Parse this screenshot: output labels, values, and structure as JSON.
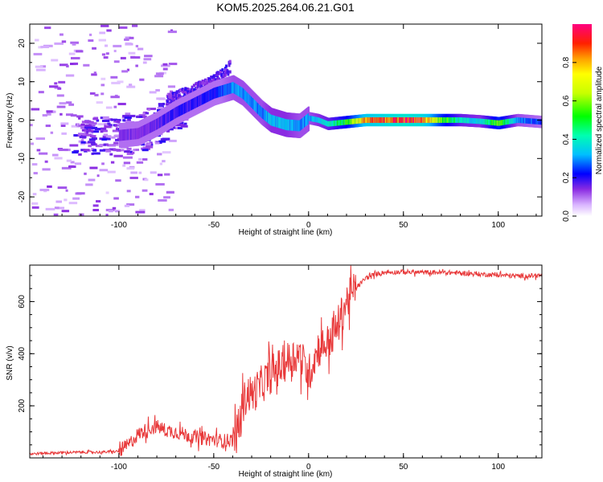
{
  "title": "KOM5.2025.264.06.21.G01",
  "chart_data": [
    {
      "type": "heatmap",
      "xlabel": "Height of straight line (km)",
      "ylabel": "Frequency (Hz)",
      "xlim": [
        -147,
        123
      ],
      "ylim": [
        -25,
        25
      ],
      "xticks": [
        -100,
        -50,
        0,
        50,
        100
      ],
      "xtick_labels": [
        "-100",
        "-50",
        "0",
        "50",
        "100"
      ],
      "yticks": [
        -20,
        -10,
        0,
        10,
        20
      ],
      "ytick_labels": [
        "-20",
        "-10",
        "0",
        "10",
        "20"
      ],
      "colorbar": {
        "label": "Normalized spectral amplitude",
        "range": [
          0,
          1
        ],
        "ticks": [
          0,
          0.2,
          0.4,
          0.6,
          0.8
        ],
        "tick_labels": [
          "0.0",
          "0.2",
          "0.4",
          "0.6",
          "0.8"
        ]
      },
      "ridge": {
        "description": "dominant frequency track",
        "points": [
          {
            "x": -100,
            "y": -4,
            "amp": 0.15
          },
          {
            "x": -90,
            "y": -3.5,
            "amp": 0.15
          },
          {
            "x": -80,
            "y": -1,
            "amp": 0.17
          },
          {
            "x": -70,
            "y": 2,
            "amp": 0.2
          },
          {
            "x": -60,
            "y": 4.5,
            "amp": 0.2
          },
          {
            "x": -50,
            "y": 7,
            "amp": 0.22
          },
          {
            "x": -40,
            "y": 8.5,
            "amp": 0.3
          },
          {
            "x": -35,
            "y": 7,
            "amp": 0.3
          },
          {
            "x": -30,
            "y": 4.5,
            "amp": 0.3
          },
          {
            "x": -25,
            "y": 2,
            "amp": 0.3
          },
          {
            "x": -20,
            "y": 0,
            "amp": 0.35
          },
          {
            "x": -12,
            "y": -1.2,
            "amp": 0.35
          },
          {
            "x": -5,
            "y": -1.5,
            "amp": 0.3
          },
          {
            "x": 0,
            "y": 0.5,
            "amp": 0.3
          },
          {
            "x": 5,
            "y": 0,
            "amp": 0.35
          },
          {
            "x": 10,
            "y": -1,
            "amp": 0.4
          },
          {
            "x": 20,
            "y": -0.5,
            "amp": 0.55
          },
          {
            "x": 30,
            "y": 0,
            "amp": 0.85
          },
          {
            "x": 50,
            "y": 0,
            "amp": 0.95
          },
          {
            "x": 60,
            "y": 0,
            "amp": 0.9
          },
          {
            "x": 70,
            "y": 0,
            "amp": 0.6
          },
          {
            "x": 80,
            "y": 0,
            "amp": 0.4
          },
          {
            "x": 90,
            "y": -0.3,
            "amp": 0.35
          },
          {
            "x": 100,
            "y": -0.8,
            "amp": 0.6
          },
          {
            "x": 110,
            "y": 0,
            "amp": 0.3
          },
          {
            "x": 123,
            "y": -0.5,
            "amp": 0.25
          }
        ]
      },
      "upper_branch": {
        "description": "secondary upper frequency branch",
        "points": [
          {
            "x": -75,
            "y": 5
          },
          {
            "x": -65,
            "y": 7
          },
          {
            "x": -55,
            "y": 9
          },
          {
            "x": -45,
            "y": 12
          },
          {
            "x": -42,
            "y": 14
          }
        ]
      }
    },
    {
      "type": "line",
      "xlabel": "Height of straight line (km)",
      "ylabel": "SNR (v/v)",
      "xlim": [
        -147,
        123
      ],
      "ylim": [
        0,
        740
      ],
      "xticks": [
        -100,
        -50,
        0,
        50,
        100
      ],
      "xtick_labels": [
        "-100",
        "-50",
        "0",
        "50",
        "100"
      ],
      "yticks": [
        200,
        400,
        600
      ],
      "ytick_labels": [
        "200",
        "400",
        "600"
      ],
      "color": "#e8393a",
      "series": [
        {
          "name": "SNR",
          "x": [
            -147,
            -140,
            -130,
            -120,
            -110,
            -100,
            -95,
            -90,
            -85,
            -80,
            -75,
            -70,
            -65,
            -60,
            -55,
            -50,
            -45,
            -40,
            -37,
            -35,
            -32,
            -30,
            -25,
            -20,
            -15,
            -10,
            -5,
            0,
            5,
            10,
            15,
            20,
            25,
            30,
            35,
            40,
            50,
            60,
            70,
            80,
            90,
            100,
            110,
            123
          ],
          "y": [
            15,
            18,
            20,
            22,
            22,
            25,
            50,
            90,
            110,
            120,
            105,
            100,
            90,
            80,
            75,
            70,
            65,
            70,
            100,
            200,
            250,
            240,
            280,
            320,
            350,
            380,
            400,
            320,
            420,
            440,
            500,
            600,
            650,
            690,
            705,
            712,
            714,
            712,
            712,
            710,
            705,
            702,
            698,
            700
          ]
        }
      ]
    }
  ]
}
